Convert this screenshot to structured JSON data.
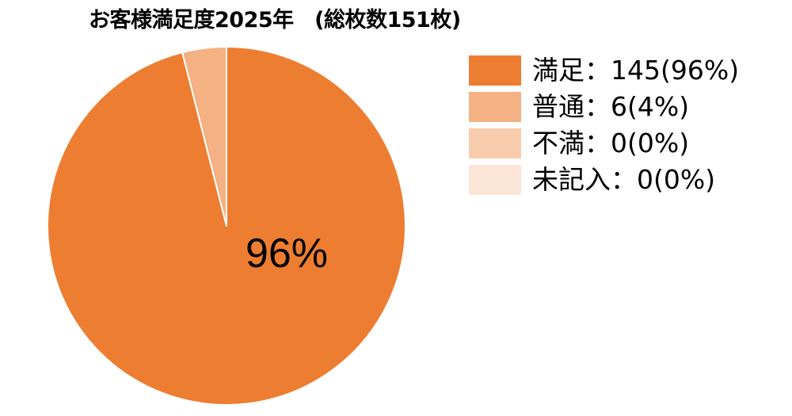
{
  "chart_data": {
    "type": "pie",
    "title": "お客様満足度2025年　(総枚数151枚)",
    "total": 151,
    "slices": [
      {
        "label": "満足",
        "value": 145,
        "percent": 96,
        "color": "#ed7d31",
        "legend_text": "満足：145(96%)"
      },
      {
        "label": "普通",
        "value": 6,
        "percent": 4,
        "color": "#f4b183",
        "legend_text": "普通：6(4%)"
      },
      {
        "label": "不満",
        "value": 0,
        "percent": 0,
        "color": "#f8cbad",
        "legend_text": "不満：0(0%)"
      },
      {
        "label": "未記入",
        "value": 0,
        "percent": 0,
        "color": "#fbe5d6",
        "legend_text": "未記入：0(0%)"
      }
    ],
    "data_labels": [
      {
        "slice": "満足",
        "text": "96%"
      }
    ],
    "start_angle_deg": 0,
    "direction": "clockwise",
    "legend_position": "right"
  }
}
